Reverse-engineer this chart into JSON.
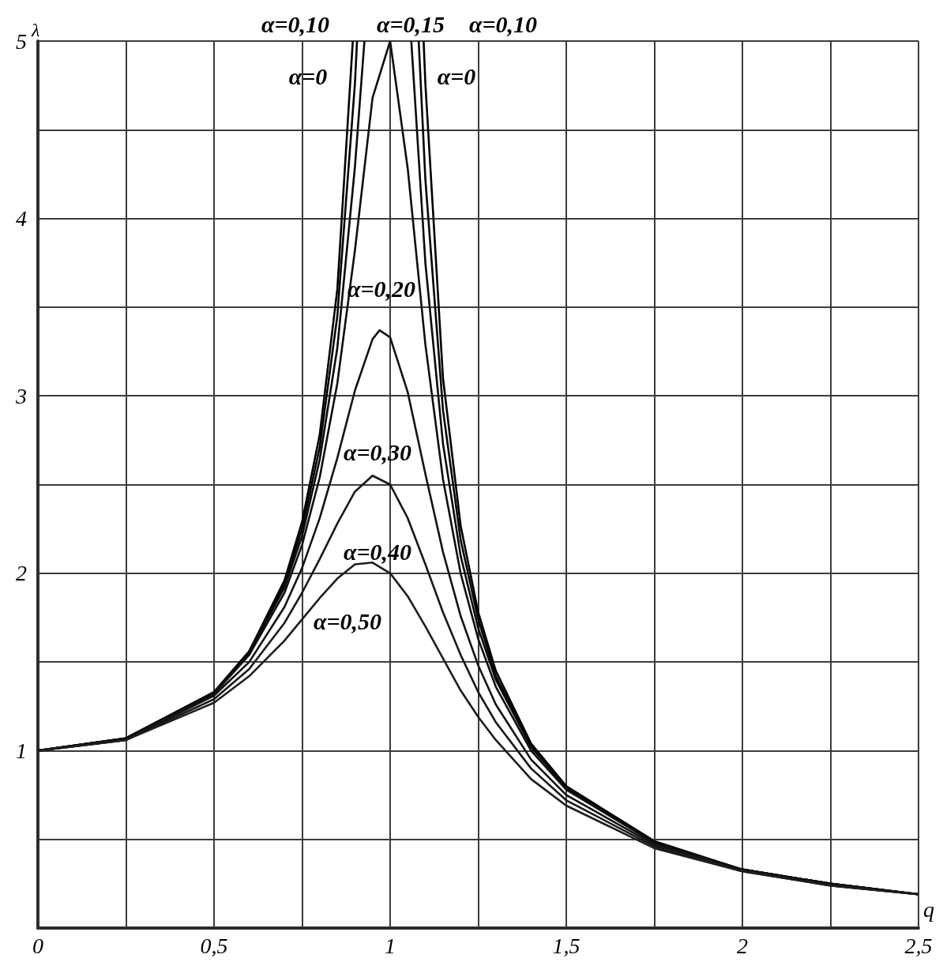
{
  "chart_data": {
    "type": "line",
    "xlabel": "q",
    "ylabel": "λ",
    "xlim": [
      0,
      2.5
    ],
    "ylim": [
      0,
      5
    ],
    "xticks": [
      {
        "value": 0,
        "label": "0"
      },
      {
        "value": 0.25,
        "label": null
      },
      {
        "value": 0.5,
        "label": "0,5"
      },
      {
        "value": 0.75,
        "label": null
      },
      {
        "value": 1,
        "label": "1"
      },
      {
        "value": 1.25,
        "label": null
      },
      {
        "value": 1.5,
        "label": "1,5"
      },
      {
        "value": 1.75,
        "label": null
      },
      {
        "value": 2,
        "label": "2"
      },
      {
        "value": 2.25,
        "label": null
      },
      {
        "value": 2.5,
        "label": "2,5"
      }
    ],
    "yticks": [
      {
        "value": 0,
        "label": null
      },
      {
        "value": 0.5,
        "label": null
      },
      1,
      {
        "value": 1.5,
        "label": null
      },
      2,
      {
        "value": 2.5,
        "label": null
      },
      3,
      {
        "value": 3.5,
        "label": null
      },
      4,
      {
        "value": 4.5,
        "label": null
      },
      5
    ],
    "grid": true,
    "marker": "none",
    "line_style": "solid",
    "series": [
      {
        "color": "#000000",
        "x": [
          0,
          0.25,
          0.5,
          0.6,
          0.7,
          0.75,
          0.8,
          0.85,
          0.894,
          1,
          1.095,
          1.1,
          1.15,
          1.2,
          1.25,
          1.3,
          1.4,
          1.5,
          1.75,
          2,
          2.25,
          2.5
        ],
        "values": [
          1,
          1.07,
          1.33,
          1.56,
          1.96,
          2.29,
          2.78,
          3.6,
          5,
          null,
          5,
          4.76,
          3.1,
          2.27,
          1.78,
          1.45,
          1.04,
          0.8,
          0.49,
          0.33,
          0.25,
          0.19
        ]
      },
      {
        "color": "#050505",
        "x": [
          0,
          0.25,
          0.5,
          0.6,
          0.7,
          0.75,
          0.8,
          0.85,
          0.9,
          0.906,
          1,
          1.081,
          1.1,
          1.15,
          1.2,
          1.25,
          1.3,
          1.4,
          1.5,
          1.75,
          2,
          2.25,
          2.5
        ],
        "values": [
          1,
          1.07,
          1.33,
          1.56,
          1.94,
          2.25,
          2.71,
          3.45,
          4.76,
          5,
          null,
          5,
          4.22,
          2.92,
          2.19,
          1.74,
          1.42,
          1.03,
          0.79,
          0.48,
          0.33,
          0.25,
          0.19
        ]
      },
      {
        "color": "#0a0a0a",
        "x": [
          0,
          0.25,
          0.5,
          0.6,
          0.7,
          0.75,
          0.8,
          0.85,
          0.9,
          0.927,
          1,
          1.06,
          1.1,
          1.15,
          1.2,
          1.25,
          1.3,
          1.4,
          1.5,
          1.75,
          2,
          2.25,
          2.5
        ],
        "values": [
          1,
          1.07,
          1.33,
          1.55,
          1.92,
          2.21,
          2.64,
          3.27,
          4.29,
          5,
          null,
          5,
          3.75,
          2.73,
          2.1,
          1.69,
          1.4,
          1.02,
          0.79,
          0.48,
          0.33,
          0.25,
          0.19
        ]
      },
      {
        "color": "#0f0f0f",
        "x": [
          0,
          0.25,
          0.5,
          0.6,
          0.7,
          0.75,
          0.8,
          0.85,
          0.9,
          0.95,
          1,
          1.05,
          1.1,
          1.15,
          1.2,
          1.25,
          1.3,
          1.4,
          1.5,
          1.75,
          2,
          2.25,
          2.5
        ],
        "values": [
          1,
          1.07,
          1.32,
          1.54,
          1.89,
          2.16,
          2.54,
          3.07,
          3.82,
          4.68,
          5,
          4.28,
          3.29,
          2.53,
          2,
          1.63,
          1.36,
          1,
          0.78,
          0.48,
          0.33,
          0.25,
          0.19
        ]
      },
      {
        "color": "#141414",
        "x": [
          0,
          0.25,
          0.5,
          0.6,
          0.7,
          0.75,
          0.8,
          0.85,
          0.9,
          0.95,
          0.97,
          1,
          1.05,
          1.1,
          1.15,
          1.2,
          1.25,
          1.3,
          1.4,
          1.5,
          1.75,
          2,
          2.25,
          2.5
        ],
        "values": [
          1,
          1.06,
          1.31,
          1.5,
          1.81,
          2.03,
          2.31,
          2.65,
          3.03,
          3.32,
          3.37,
          3.33,
          3.02,
          2.56,
          2.12,
          1.76,
          1.48,
          1.26,
          0.95,
          0.75,
          0.47,
          0.33,
          0.24,
          0.19
        ]
      },
      {
        "color": "#191919",
        "x": [
          0,
          0.25,
          0.5,
          0.6,
          0.7,
          0.75,
          0.8,
          0.85,
          0.9,
          0.95,
          1,
          1.05,
          1.1,
          1.15,
          1.2,
          1.25,
          1.3,
          1.4,
          1.5,
          1.75,
          2,
          2.25,
          2.5
        ],
        "values": [
          1,
          1.06,
          1.29,
          1.46,
          1.72,
          1.89,
          2.08,
          2.28,
          2.46,
          2.55,
          2.5,
          2.31,
          2.05,
          1.78,
          1.54,
          1.33,
          1.16,
          0.9,
          0.72,
          0.46,
          0.32,
          0.24,
          0.19
        ]
      },
      {
        "color": "#1e1e1e",
        "x": [
          0,
          0.25,
          0.5,
          0.6,
          0.7,
          0.75,
          0.8,
          0.85,
          0.9,
          0.95,
          1,
          1.05,
          1.1,
          1.15,
          1.2,
          1.25,
          1.3,
          1.4,
          1.5,
          1.75,
          2,
          2.25,
          2.5
        ],
        "values": [
          1,
          1.06,
          1.27,
          1.42,
          1.62,
          1.74,
          1.86,
          1.97,
          2.05,
          2.06,
          2,
          1.87,
          1.7,
          1.52,
          1.34,
          1.19,
          1.06,
          0.84,
          0.69,
          0.45,
          0.32,
          0.24,
          0.19
        ]
      }
    ],
    "annotations": [
      "α=0,10",
      "α=0,15",
      "α=0,10",
      "α=0",
      "α=0",
      "α=0,20",
      "α=0,30",
      "α=0,40",
      "α=0,50"
    ]
  }
}
